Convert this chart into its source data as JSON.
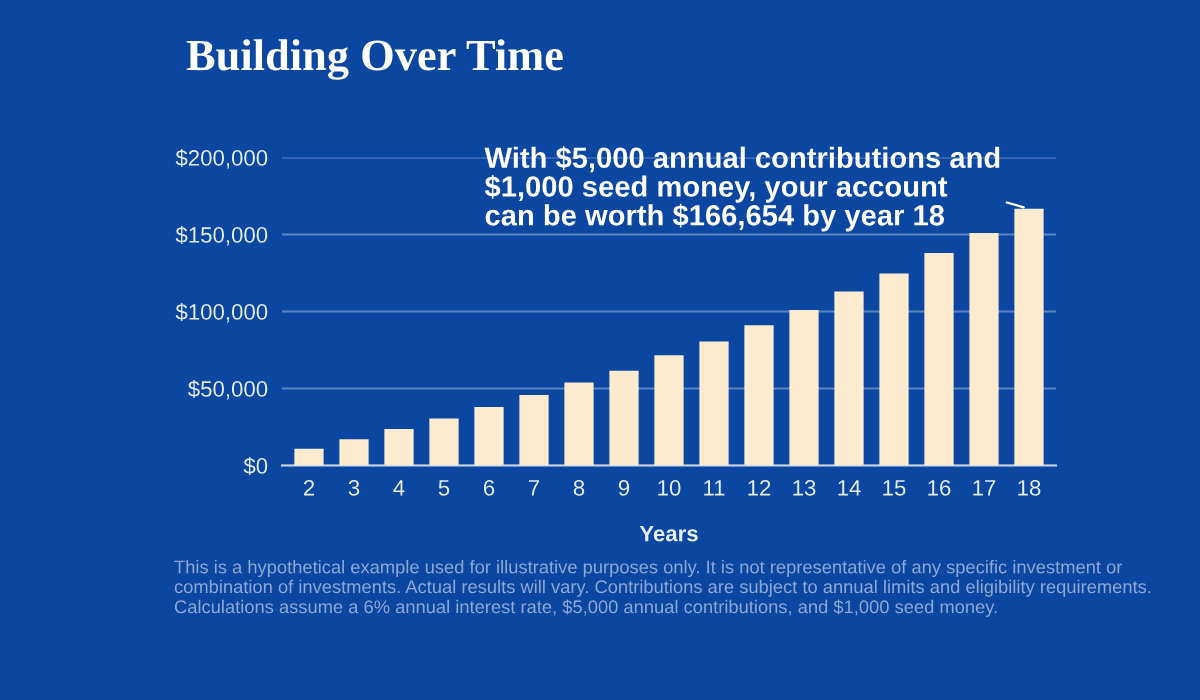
{
  "chart_data": {
    "type": "bar",
    "title": "Building Over Time",
    "xlabel": "Years",
    "categories": [
      "2",
      "3",
      "4",
      "5",
      "6",
      "7",
      "8",
      "9",
      "10",
      "11",
      "12",
      "13",
      "14",
      "15",
      "16",
      "17",
      "18"
    ],
    "values": [
      10800,
      17000,
      23700,
      30600,
      38000,
      45700,
      53900,
      61600,
      71600,
      80600,
      91000,
      101000,
      113000,
      124600,
      138000,
      151000,
      166654
    ],
    "color": "#fdebd0",
    "ylim": [
      0,
      200000
    ],
    "yticks": [
      {
        "value": 0,
        "label": "$0"
      },
      {
        "value": 50000,
        "label": "$50,000"
      },
      {
        "value": 100000,
        "label": "$100,000"
      },
      {
        "value": 150000,
        "label": "$150,000"
      },
      {
        "value": 200000,
        "label": "$200,000"
      }
    ],
    "grid": "y",
    "annotations": [
      {
        "text": "With $5,000 annual contributions and\n$1,000 seed money, your account\ncan be worth $166,654 by year 18",
        "x": "18",
        "y": 166654
      },
      "This is a hypothetical example used for illustrative purposes only. It is not representative of any specific investment or combination of investments. Actual results will vary. Contributions are subject to annual limits and eligibility requirements. Calculations assume a 6% annual interest rate, $5,000 annual contributions, and $1,000 seed money."
    ]
  }
}
